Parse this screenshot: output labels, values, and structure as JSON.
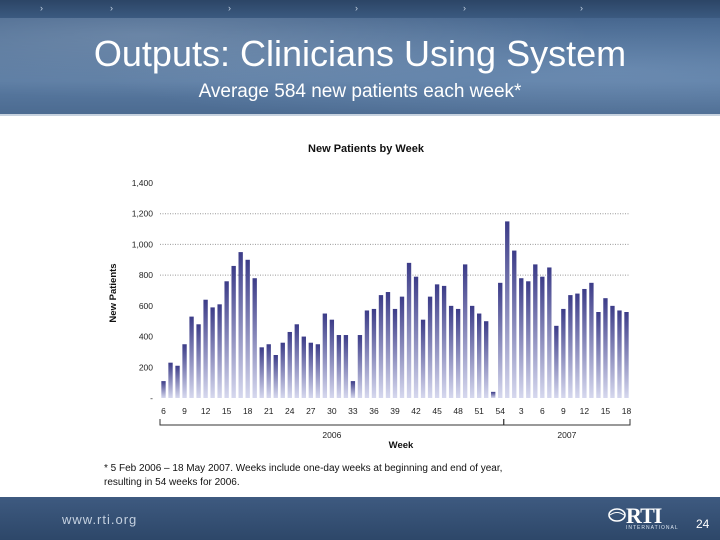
{
  "slide": {
    "title": "Outputs: Clinicians Using System",
    "subtitle": "Average 584 new patients each week*",
    "footnote_line1": "* 5 Feb 2006 – 18 May 2007. Weeks include one-day weeks at beginning and end of year,",
    "footnote_line2": "resulting in 54 weeks for 2006.",
    "footer_url": "www.rti.org",
    "logo_text": "RTI",
    "logo_sub": "INTERNATIONAL",
    "page_number": "24"
  },
  "colors": {
    "bar_top": "#3c3c88",
    "bar_bottom": "#d6d8ee",
    "grid": "#999999"
  },
  "chart_data": {
    "type": "bar",
    "title": "New Patients by Week",
    "xlabel": "Week",
    "ylabel": "New Patients",
    "ylim": [
      0,
      1400
    ],
    "ytick_values": [
      0,
      200,
      400,
      600,
      800,
      1000,
      1200,
      1400
    ],
    "ytick_labels": [
      "-",
      "200",
      "400",
      "600",
      "800",
      "1,000",
      "1,200",
      "1,400"
    ],
    "gridlines": [
      800,
      1000,
      1200
    ],
    "tick_labels": [
      {
        "label": "6",
        "at": 0
      },
      {
        "label": "9",
        "at": 3
      },
      {
        "label": "12",
        "at": 6
      },
      {
        "label": "15",
        "at": 9
      },
      {
        "label": "18",
        "at": 12
      },
      {
        "label": "21",
        "at": 15
      },
      {
        "label": "24",
        "at": 18
      },
      {
        "label": "27",
        "at": 21
      },
      {
        "label": "30",
        "at": 24
      },
      {
        "label": "33",
        "at": 27
      },
      {
        "label": "36",
        "at": 30
      },
      {
        "label": "39",
        "at": 33
      },
      {
        "label": "42",
        "at": 36
      },
      {
        "label": "45",
        "at": 39
      },
      {
        "label": "48",
        "at": 42
      },
      {
        "label": "51",
        "at": 45
      },
      {
        "label": "54",
        "at": 48
      },
      {
        "label": "3",
        "at": 51
      },
      {
        "label": "6",
        "at": 54
      },
      {
        "label": "9",
        "at": 57
      },
      {
        "label": "12",
        "at": 60
      },
      {
        "label": "15",
        "at": 63
      },
      {
        "label": "18",
        "at": 66
      }
    ],
    "groups": [
      {
        "label": "2006",
        "start": 0,
        "end": 48
      },
      {
        "label": "2007",
        "start": 49,
        "end": 66
      }
    ],
    "values": [
      110,
      230,
      210,
      350,
      530,
      480,
      640,
      590,
      610,
      760,
      860,
      950,
      900,
      780,
      330,
      350,
      280,
      360,
      430,
      480,
      400,
      360,
      350,
      550,
      510,
      410,
      410,
      110,
      410,
      570,
      580,
      670,
      690,
      580,
      660,
      880,
      790,
      510,
      660,
      740,
      730,
      600,
      580,
      870,
      600,
      550,
      500,
      40,
      750,
      1150,
      960,
      780,
      760,
      870,
      790,
      850,
      470,
      580,
      670,
      680,
      710,
      750,
      560,
      650,
      600,
      570,
      560
    ]
  }
}
